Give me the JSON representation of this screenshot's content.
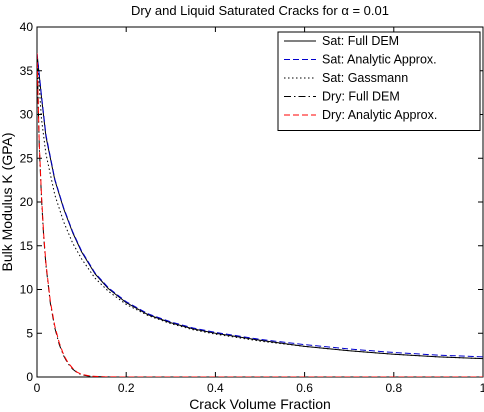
{
  "chart_data": {
    "type": "line",
    "title": "Dry and Liquid Saturated Cracks for α = 0.01",
    "xlabel": "Crack Volume Fraction",
    "ylabel": "Bulk Modulus K (GPA)",
    "xlim": [
      0,
      1
    ],
    "ylim": [
      0,
      40
    ],
    "xticks": [
      0,
      0.2,
      0.4,
      0.6,
      0.8,
      1
    ],
    "xtick_labels": [
      "0",
      "0.2",
      "0.4",
      "0.6",
      "0.8",
      "1"
    ],
    "yticks": [
      0,
      5,
      10,
      15,
      20,
      25,
      30,
      35,
      40
    ],
    "ytick_labels": [
      "0",
      "5",
      "10",
      "15",
      "20",
      "25",
      "30",
      "35",
      "40"
    ],
    "grid": false,
    "legend_position": "top-right",
    "series": [
      {
        "name": "Sat: Full DEM",
        "color": "#000000",
        "dash": "solid",
        "x": [
          0,
          0.01,
          0.02,
          0.04,
          0.06,
          0.08,
          0.1,
          0.13,
          0.16,
          0.2,
          0.25,
          0.3,
          0.35,
          0.4,
          0.5,
          0.6,
          0.7,
          0.8,
          0.9,
          1.0
        ],
        "y": [
          37,
          32,
          27.5,
          22.5,
          19.2,
          16.5,
          14.3,
          11.8,
          10.1,
          8.5,
          7.1,
          6.2,
          5.5,
          5.0,
          4.2,
          3.5,
          3.0,
          2.6,
          2.3,
          2.1
        ]
      },
      {
        "name": "Sat: Analytic Approx.",
        "color": "#0000cc",
        "dash": "dashed",
        "x": [
          0,
          0.01,
          0.02,
          0.04,
          0.06,
          0.08,
          0.1,
          0.13,
          0.16,
          0.2,
          0.25,
          0.3,
          0.35,
          0.4,
          0.5,
          0.6,
          0.7,
          0.8,
          0.9,
          1.0
        ],
        "y": [
          37,
          32.2,
          27.7,
          22.6,
          19.3,
          16.6,
          14.4,
          11.9,
          10.2,
          8.6,
          7.2,
          6.3,
          5.6,
          5.1,
          4.3,
          3.7,
          3.2,
          2.8,
          2.5,
          2.3
        ]
      },
      {
        "name": "Sat: Gassmann",
        "color": "#000000",
        "dash": "dotted",
        "x": [
          0,
          0.01,
          0.02,
          0.04,
          0.06,
          0.08,
          0.1,
          0.13,
          0.16,
          0.2,
          0.25,
          0.3,
          0.35,
          0.4,
          0.5,
          0.6,
          0.7,
          0.8,
          0.9,
          1.0
        ],
        "y": [
          37,
          29.5,
          25.5,
          20.8,
          17.7,
          15.3,
          13.5,
          11.3,
          9.8,
          8.3,
          7.0,
          6.1,
          5.4,
          4.9,
          4.1,
          3.5,
          3.0,
          2.6,
          2.3,
          2.1
        ]
      },
      {
        "name": "Dry: Full DEM",
        "color": "#000000",
        "dash": "dashdot",
        "x": [
          0,
          0.005,
          0.01,
          0.015,
          0.02,
          0.03,
          0.04,
          0.05,
          0.06,
          0.07,
          0.08,
          0.09,
          0.1,
          0.12,
          0.15,
          0.2,
          0.3,
          0.5,
          1.0
        ],
        "y": [
          37,
          26.5,
          20.5,
          16.0,
          12.8,
          8.4,
          5.6,
          3.7,
          2.4,
          1.5,
          0.9,
          0.5,
          0.25,
          0.08,
          0.01,
          0,
          0,
          0,
          0
        ]
      },
      {
        "name": "Dry: Analytic Approx.",
        "color": "#ff0000",
        "dash": "dashed",
        "x": [
          0,
          0.005,
          0.01,
          0.015,
          0.02,
          0.03,
          0.04,
          0.05,
          0.06,
          0.07,
          0.08,
          0.09,
          0.1,
          0.12,
          0.15,
          0.2,
          0.3,
          0.5,
          1.0
        ],
        "y": [
          37,
          26.8,
          20.8,
          16.3,
          13.0,
          8.6,
          5.8,
          3.9,
          2.5,
          1.6,
          1.0,
          0.55,
          0.3,
          0.1,
          0.02,
          0,
          0,
          0,
          0
        ]
      }
    ]
  }
}
